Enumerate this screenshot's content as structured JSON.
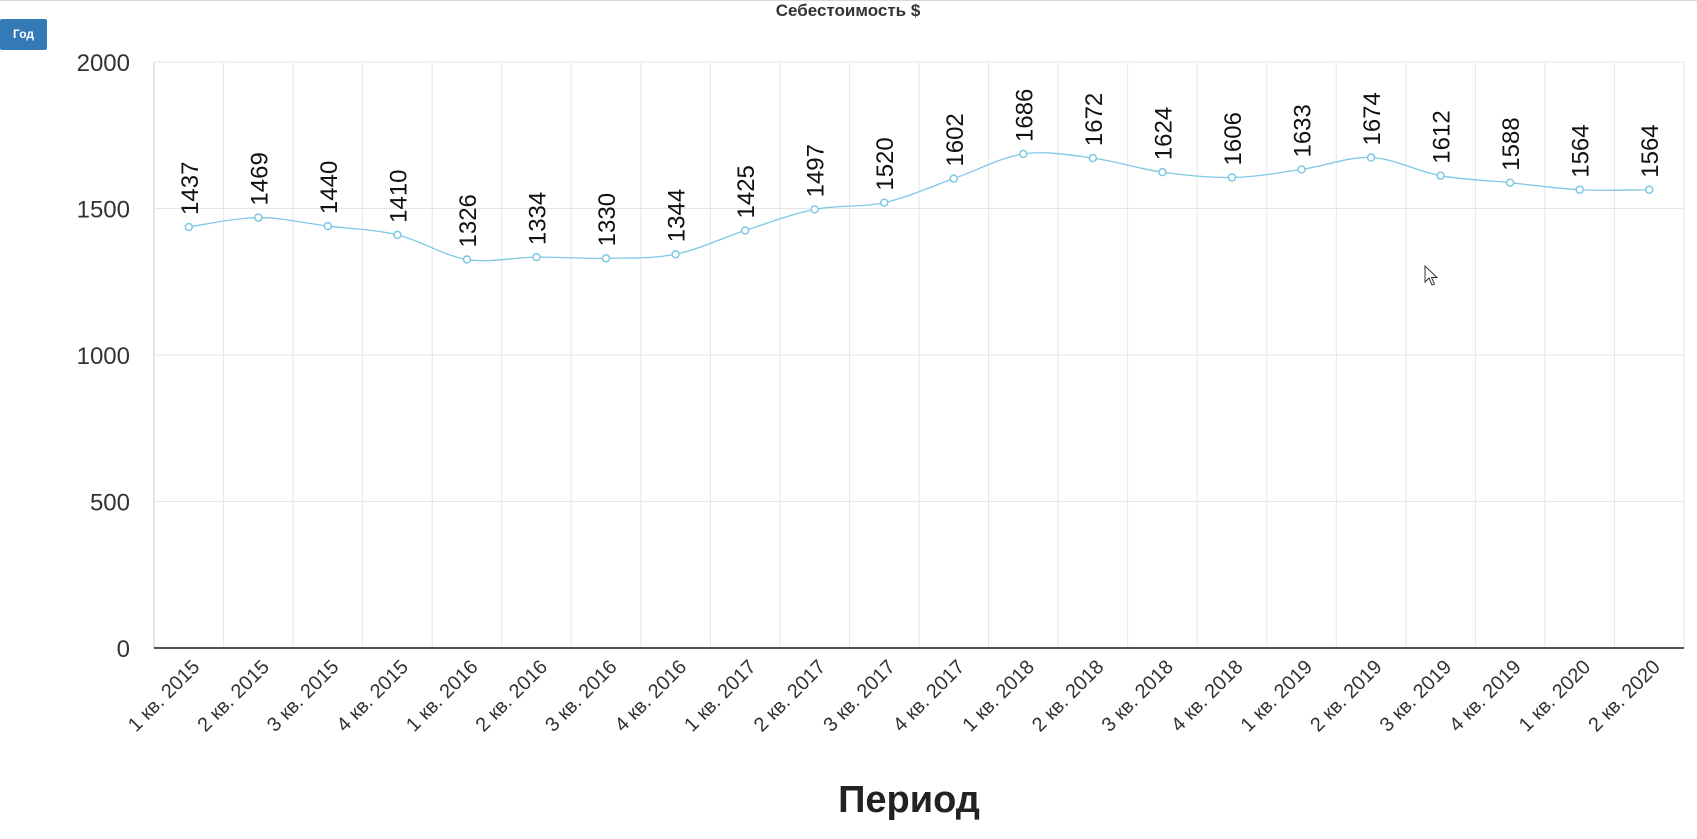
{
  "controls": {
    "period_button_label": "Год"
  },
  "chart_data": {
    "type": "line",
    "title": "Себестоимость $",
    "xlabel": "Период",
    "ylabel": "",
    "ylim": [
      0,
      2000
    ],
    "yticks": [
      0,
      500,
      1000,
      1500,
      2000
    ],
    "grid": true,
    "legend": "none",
    "categories": [
      "1 кв. 2015",
      "2 кв. 2015",
      "3 кв. 2015",
      "4 кв. 2015",
      "1 кв. 2016",
      "2 кв. 2016",
      "3 кв. 2016",
      "4 кв. 2016",
      "1 кв. 2017",
      "2 кв. 2017",
      "3 кв. 2017",
      "4 кв. 2017",
      "1 кв. 2018",
      "2 кв. 2018",
      "3 кв. 2018",
      "4 кв. 2018",
      "1 кв. 2019",
      "2 кв. 2019",
      "3 кв. 2019",
      "4 кв. 2019",
      "1 кв. 2020",
      "2 кв. 2020"
    ],
    "series": [
      {
        "color": "#7ec8e3",
        "values": [
          1437,
          1469,
          1440,
          1410,
          1326,
          1334,
          1330,
          1344,
          1425,
          1497,
          1520,
          1602,
          1686,
          1672,
          1624,
          1606,
          1633,
          1674,
          1612,
          1588,
          1564,
          1564
        ]
      }
    ]
  }
}
